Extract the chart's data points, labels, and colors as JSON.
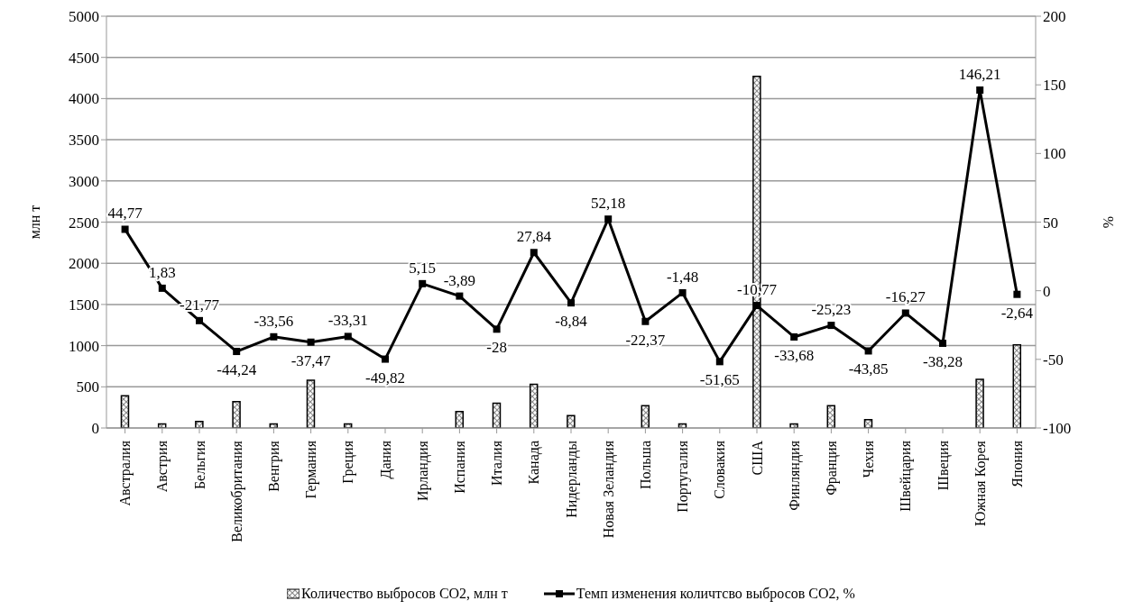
{
  "chart_data": {
    "type": "bar",
    "ylabel": "млн т",
    "y2label": "%",
    "categories": [
      "Австралия",
      "Австрия",
      "Бельгия",
      "Великобритания",
      "Венгрия",
      "Германия",
      "Греция",
      "Дания",
      "Ирландия",
      "Испания",
      "Италия",
      "Канада",
      "Нидерланды",
      "Новая Зеландия",
      "Польша",
      "Португалия",
      "Словакия",
      "США",
      "Финляндия",
      "Франция",
      "Чехия",
      "Швейцария",
      "Швеция",
      "Южная Корея",
      "Япония"
    ],
    "series": [
      {
        "name": "Количество  выбросов СО2, млн т",
        "color": "#000000",
        "values": [
          390,
          50,
          80,
          320,
          50,
          580,
          50,
          0,
          0,
          200,
          300,
          530,
          150,
          0,
          270,
          50,
          0,
          4270,
          50,
          270,
          100,
          0,
          0,
          590,
          1010
        ]
      },
      {
        "name": "Темп изменения количтсво выбросов СО2, %",
        "type": "line",
        "axis": "y2",
        "color": "#000000",
        "marker": "square",
        "line_style": "solid",
        "values": [
          44.77,
          1.83,
          -21.77,
          -44.24,
          -33.56,
          -37.47,
          -33.31,
          -49.82,
          5.15,
          -3.89,
          -28,
          27.84,
          -8.84,
          52.18,
          -22.37,
          -1.48,
          -51.65,
          -10.77,
          -33.68,
          -25.23,
          -43.85,
          -16.27,
          -38.28,
          146.21,
          -2.64
        ],
        "value_labels": [
          "44,77",
          "1,83",
          "-21,77",
          "-44,24",
          "-33,56",
          "-37,47",
          "-33,31",
          "-49,82",
          "5,15",
          "-3,89",
          "-28",
          "27,84",
          "-8,84",
          "52,18",
          "-22,37",
          "-1,48",
          "-51,65",
          "-10,77",
          "-33,68",
          "-25,23",
          "-43,85",
          "-16,27",
          "-38,28",
          "146,21",
          "-2,64"
        ]
      }
    ],
    "ylim": [
      0,
      5000
    ],
    "yticks": [
      0,
      500,
      1000,
      1500,
      2000,
      2500,
      3000,
      3500,
      4000,
      4500,
      5000
    ],
    "y2lim": [
      -100,
      200
    ],
    "y2ticks": [
      -100,
      -50,
      0,
      50,
      100,
      150,
      200
    ],
    "grid": "y",
    "legend": "bottom"
  }
}
